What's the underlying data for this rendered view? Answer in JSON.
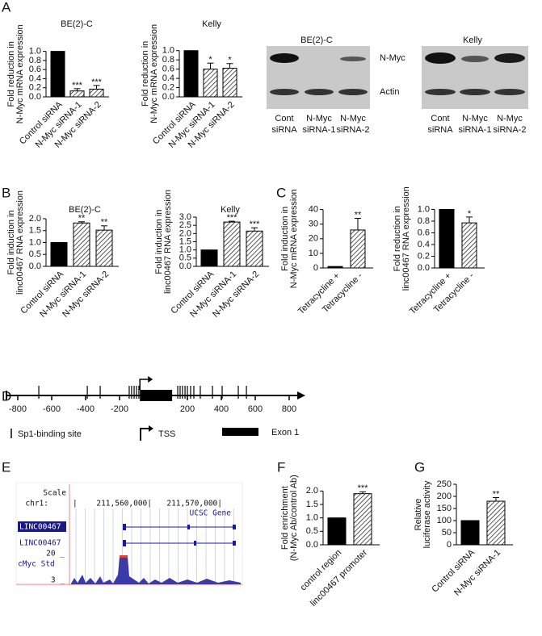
{
  "panels": [
    "A",
    "B",
    "C",
    "D",
    "E",
    "F",
    "G"
  ],
  "chart_data": [
    {
      "type": "bar",
      "title": "BE(2)-C",
      "ylabel": [
        "Fold reduction in",
        "N-Myc mRNA expression"
      ],
      "categories": [
        "Control siRNA",
        "N-Myc siRNA-1",
        "N-Myc siRNA-2"
      ],
      "values": [
        1,
        0.13,
        0.17
      ],
      "errors": [
        null,
        0.05,
        0.08
      ],
      "significance": [
        null,
        "***",
        "***"
      ],
      "fills": [
        "solid",
        "hatch",
        "hatch"
      ],
      "color": "#000000",
      "ylim": [
        0,
        1.1
      ],
      "yticks": [
        {
          "value": 0,
          "label": "0.0"
        },
        0.2,
        0.4,
        0.6,
        0.8,
        {
          "value": 1,
          "label": "1.0"
        }
      ]
    },
    {
      "type": "bar",
      "title": "Kelly",
      "ylabel": [
        "Fold reduction in",
        "N-Myc mRNA expression"
      ],
      "categories": [
        "Control siRNA",
        "N-Myc siRNA-1",
        "N-Myc siRNA-2"
      ],
      "values": [
        1,
        0.6,
        0.62
      ],
      "errors": [
        null,
        0.13,
        0.1
      ],
      "significance": [
        null,
        "*",
        "*"
      ],
      "fills": [
        "solid",
        "hatch",
        "hatch"
      ],
      "color": "#000000",
      "ylim": [
        0,
        1.1
      ],
      "yticks": [
        {
          "value": 0,
          "label": "0.0"
        },
        0.2,
        0.4,
        0.6,
        0.8,
        {
          "value": 1,
          "label": "1.0"
        }
      ]
    },
    {
      "type": "bar",
      "title": "BE(2)-C",
      "ylabel": [
        "Fold induction in",
        "linc00467 RNA expression"
      ],
      "categories": [
        "Control siRNA",
        "N-Myc siRNA-1",
        "N-Myc siRNA-2"
      ],
      "values": [
        1,
        1.82,
        1.52
      ],
      "errors": [
        null,
        0.05,
        0.18
      ],
      "significance": [
        null,
        "**",
        "**"
      ],
      "fills": [
        "solid",
        "hatch",
        "hatch"
      ],
      "color": "#000000",
      "ylim": [
        0,
        2.1
      ],
      "yticks": [
        {
          "value": 0,
          "label": "0.0"
        },
        0.5,
        {
          "value": 1,
          "label": "1.0"
        },
        1.5,
        {
          "value": 2,
          "label": "2.0"
        }
      ]
    },
    {
      "type": "bar",
      "title": "Kelly",
      "ylabel": [
        "Fold induction in",
        "linc00467 RNA expression"
      ],
      "categories": [
        "Control siRNA",
        "N-Myc siRNA-1",
        "N-Myc siRNA-2"
      ],
      "values": [
        1,
        2.7,
        2.15
      ],
      "errors": [
        null,
        0.05,
        0.2
      ],
      "significance": [
        null,
        "***",
        "***"
      ],
      "fills": [
        "solid",
        "hatch",
        "hatch"
      ],
      "color": "#000000",
      "ylim": [
        0,
        3.05
      ],
      "yticks": [
        {
          "value": 0,
          "label": "0.0"
        },
        0.5,
        {
          "value": 1,
          "label": "1.0"
        },
        1.5,
        {
          "value": 2,
          "label": "2.0"
        },
        2.5,
        {
          "value": 3,
          "label": "3.0"
        }
      ]
    },
    {
      "type": "bar",
      "ylabel": [
        "Fold induction in",
        "N-Myc mRNA expression"
      ],
      "categories": [
        "Tetracycline +",
        "Tetracycline -"
      ],
      "values": [
        1,
        26
      ],
      "errors": [
        null,
        8
      ],
      "significance": [
        null,
        "**"
      ],
      "fills": [
        "solid",
        "hatch"
      ],
      "color": "#000000",
      "ylim": [
        0,
        42
      ],
      "yticks": [
        0,
        10,
        20,
        30,
        40
      ]
    },
    {
      "type": "bar",
      "ylabel": [
        "Fold reduction in",
        "linc00467 RNA expression"
      ],
      "categories": [
        "Tetracycline +",
        "Tetracycline -"
      ],
      "values": [
        1,
        0.77
      ],
      "errors": [
        null,
        0.1
      ],
      "significance": [
        null,
        "*"
      ],
      "fills": [
        "solid",
        "hatch"
      ],
      "color": "#000000",
      "ylim": [
        0,
        1.02
      ],
      "yticks": [
        {
          "value": 0,
          "label": "0.0"
        },
        0.2,
        0.4,
        0.6,
        0.8,
        {
          "value": 1,
          "label": "1.0"
        }
      ]
    },
    {
      "type": "bar",
      "ylabel": [
        "Fold enrichment",
        "(N-Myc Ab/control Ab)"
      ],
      "categories": [
        "control region",
        "linc00467 promoter"
      ],
      "values": [
        1,
        1.9
      ],
      "errors": [
        null,
        0.07
      ],
      "significance": [
        null,
        "***"
      ],
      "fills": [
        "solid",
        "hatch"
      ],
      "color": "#000000",
      "ylim": [
        0,
        2.1
      ],
      "yticks": [
        {
          "value": 0,
          "label": "0.0"
        },
        0.5,
        {
          "value": 1,
          "label": "1.0"
        },
        1.5,
        {
          "value": 2,
          "label": "2.0"
        }
      ]
    },
    {
      "type": "bar",
      "ylabel": [
        "Relative",
        "luciferase activity"
      ],
      "categories": [
        "Control siRNA",
        "N-Myc siRNA-1"
      ],
      "values": [
        100,
        180
      ],
      "errors": [
        null,
        15
      ],
      "significance": [
        null,
        "**"
      ],
      "fills": [
        "solid",
        "hatch"
      ],
      "color": "#000000",
      "ylim": [
        0,
        250
      ],
      "yticks": [
        0,
        50,
        100,
        150,
        200,
        250
      ]
    }
  ],
  "blots": [
    {
      "title": "BE(2)-C",
      "lanes": [
        [
          "Cont",
          "siRNA"
        ],
        [
          "N-Myc",
          "siRNA-1"
        ],
        [
          "N-Myc",
          "siRNA-2"
        ]
      ]
    },
    {
      "title": "Kelly",
      "lanes": [
        [
          "Cont",
          "siRNA"
        ],
        [
          "N-Myc",
          "siRNA-1"
        ],
        [
          "N-Myc",
          "siRNA-2"
        ]
      ]
    }
  ],
  "blot_bands": [
    "N-Myc",
    "Actin"
  ],
  "promoter_diagram": {
    "xlim": [
      -800,
      800
    ],
    "xticks": [
      -800,
      -600,
      -400,
      -200,
      200,
      400,
      600,
      800
    ],
    "tss": -80,
    "exon": [
      -80,
      110
    ],
    "sp1_sites": [
      -676,
      -390,
      -314,
      -143,
      -129,
      -114,
      -100,
      -86,
      143,
      157,
      171,
      186,
      200,
      219,
      238,
      276,
      348,
      405,
      500,
      548
    ],
    "legend": {
      "sp1": "Sp1-binding site",
      "tss": "TSS",
      "exon": "Exon 1"
    }
  },
  "browser": {
    "scale": "Scale",
    "chrom": "chr1:",
    "positions": [
      "211,560,000|",
      "211,570,000|"
    ],
    "track": "UCSC Gene",
    "genes": [
      "LINC00467",
      "LINC00467"
    ],
    "signal_ticks": [
      "20 _",
      "3 _"
    ],
    "signal": "cMyc Std"
  }
}
